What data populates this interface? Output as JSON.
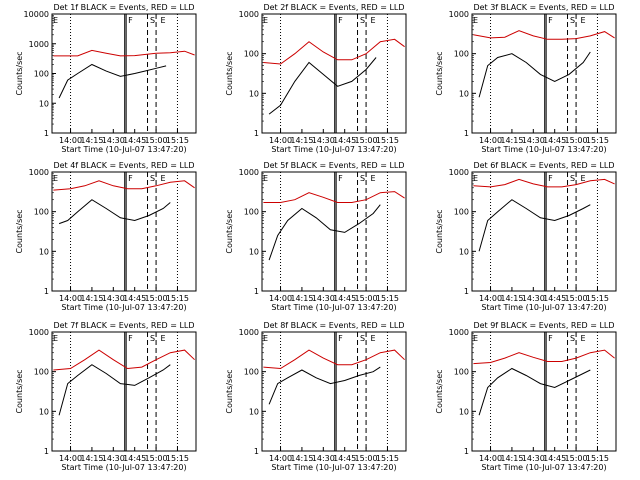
{
  "figure": {
    "xlabel": "Start Time (10-Jul-07 13:47:20)",
    "ylabel": "Counts/sec",
    "ytick_labels": [
      "1",
      "10",
      "100",
      "1000",
      "10000"
    ],
    "xtick_labels": [
      "14:00",
      "14:15",
      "14:30",
      "14:45",
      "15:00",
      "15:15"
    ],
    "marker_labels": [
      "F",
      "S",
      "E"
    ],
    "series_colors": {
      "events": "#000000",
      "lld": "#cc0000"
    }
  },
  "chart_data": [
    {
      "type": "line",
      "title": "Det 1f BLACK = Events, RED = LLD",
      "ylim": [
        1,
        10000
      ],
      "yscale": "log",
      "xticks": [
        "14:00",
        "14:15",
        "14:30",
        "14:45",
        "15:00",
        "15:15"
      ],
      "series": [
        {
          "color": "#cc0000",
          "x": [
            "13:48",
            "14:05",
            "14:15",
            "14:25",
            "14:35",
            "14:45",
            "15:00",
            "15:10",
            "15:20",
            "15:27"
          ],
          "values": [
            390,
            390,
            600,
            480,
            390,
            400,
            480,
            500,
            560,
            420
          ]
        },
        {
          "color": "#000000",
          "x": [
            "13:52",
            "13:58",
            "14:05",
            "14:15",
            "14:25",
            "14:35",
            "14:45",
            "14:52",
            "15:00",
            "15:07"
          ],
          "values": [
            15,
            60,
            100,
            200,
            120,
            80,
            100,
            120,
            150,
            180
          ]
        }
      ]
    },
    {
      "type": "line",
      "title": "Det 2f BLACK = Events, RED = LLD",
      "ylim": [
        1,
        1000
      ],
      "yscale": "log",
      "xticks": [
        "14:00",
        "14:15",
        "14:30",
        "14:45",
        "15:00",
        "15:15"
      ],
      "series": [
        {
          "color": "#cc0000",
          "x": [
            "13:48",
            "14:00",
            "14:10",
            "14:20",
            "14:30",
            "14:40",
            "14:50",
            "15:00",
            "15:10",
            "15:20",
            "15:27"
          ],
          "values": [
            60,
            55,
            100,
            200,
            110,
            70,
            70,
            100,
            200,
            230,
            150
          ]
        },
        {
          "color": "#000000",
          "x": [
            "13:52",
            "14:00",
            "14:10",
            "14:20",
            "14:30",
            "14:40",
            "14:50",
            "15:00",
            "15:07"
          ],
          "values": [
            3,
            5,
            20,
            60,
            30,
            15,
            20,
            40,
            80
          ]
        }
      ]
    },
    {
      "type": "line",
      "title": "Det 3f BLACK = Events, RED = LLD",
      "ylim": [
        1,
        1000
      ],
      "yscale": "log",
      "xticks": [
        "14:00",
        "14:15",
        "14:30",
        "14:45",
        "15:00",
        "15:15"
      ],
      "series": [
        {
          "color": "#cc0000",
          "x": [
            "13:48",
            "14:00",
            "14:10",
            "14:20",
            "14:30",
            "14:40",
            "14:50",
            "15:00",
            "15:10",
            "15:20",
            "15:27"
          ],
          "values": [
            300,
            250,
            260,
            380,
            280,
            230,
            230,
            240,
            280,
            360,
            250
          ]
        },
        {
          "color": "#000000",
          "x": [
            "13:52",
            "13:58",
            "14:05",
            "14:15",
            "14:25",
            "14:35",
            "14:45",
            "14:55",
            "15:05",
            "15:10"
          ],
          "values": [
            8,
            50,
            80,
            100,
            60,
            30,
            20,
            30,
            60,
            110
          ]
        }
      ]
    },
    {
      "type": "line",
      "title": "Det 4f BLACK = Events, RED = LLD",
      "ylim": [
        1,
        1000
      ],
      "yscale": "log",
      "xticks": [
        "14:00",
        "14:15",
        "14:30",
        "14:45",
        "15:00",
        "15:15"
      ],
      "series": [
        {
          "color": "#cc0000",
          "x": [
            "13:48",
            "14:00",
            "14:10",
            "14:20",
            "14:30",
            "14:40",
            "14:50",
            "15:00",
            "15:10",
            "15:20",
            "15:27"
          ],
          "values": [
            350,
            380,
            450,
            600,
            450,
            380,
            380,
            450,
            550,
            600,
            400
          ]
        },
        {
          "color": "#000000",
          "x": [
            "13:52",
            "13:58",
            "14:05",
            "14:15",
            "14:25",
            "14:35",
            "14:45",
            "14:55",
            "15:05",
            "15:10"
          ],
          "values": [
            50,
            60,
            100,
            200,
            120,
            70,
            60,
            80,
            120,
            170
          ]
        }
      ]
    },
    {
      "type": "line",
      "title": "Det 5f BLACK = Events, RED = LLD",
      "ylim": [
        1,
        1000
      ],
      "yscale": "log",
      "xticks": [
        "14:00",
        "14:15",
        "14:30",
        "14:45",
        "15:00",
        "15:15"
      ],
      "series": [
        {
          "color": "#cc0000",
          "x": [
            "13:48",
            "14:00",
            "14:10",
            "14:20",
            "14:30",
            "14:40",
            "14:50",
            "15:00",
            "15:10",
            "15:20",
            "15:27"
          ],
          "values": [
            170,
            170,
            200,
            300,
            230,
            170,
            170,
            200,
            300,
            320,
            220
          ]
        },
        {
          "color": "#000000",
          "x": [
            "13:52",
            "13:58",
            "14:05",
            "14:15",
            "14:25",
            "14:35",
            "14:45",
            "14:55",
            "15:05",
            "15:10"
          ],
          "values": [
            6,
            25,
            60,
            120,
            70,
            35,
            30,
            50,
            90,
            150
          ]
        }
      ]
    },
    {
      "type": "line",
      "title": "Det 6f BLACK = Events, RED = LLD",
      "ylim": [
        1,
        1000
      ],
      "yscale": "log",
      "xticks": [
        "14:00",
        "14:15",
        "14:30",
        "14:45",
        "15:00",
        "15:15"
      ],
      "series": [
        {
          "color": "#cc0000",
          "x": [
            "13:48",
            "14:00",
            "14:10",
            "14:20",
            "14:30",
            "14:40",
            "14:50",
            "15:00",
            "15:10",
            "15:20",
            "15:27"
          ],
          "values": [
            450,
            420,
            480,
            650,
            500,
            420,
            420,
            480,
            600,
            650,
            500
          ]
        },
        {
          "color": "#000000",
          "x": [
            "13:52",
            "13:58",
            "14:05",
            "14:15",
            "14:25",
            "14:35",
            "14:45",
            "14:55",
            "15:05",
            "15:10"
          ],
          "values": [
            10,
            60,
            100,
            200,
            120,
            70,
            60,
            80,
            120,
            150
          ]
        }
      ]
    },
    {
      "type": "line",
      "title": "Det 7f BLACK = Events, RED = LLD",
      "ylim": [
        1,
        1000
      ],
      "yscale": "log",
      "xticks": [
        "14:00",
        "14:15",
        "14:30",
        "14:45",
        "15:00",
        "15:15"
      ],
      "series": [
        {
          "color": "#cc0000",
          "x": [
            "13:48",
            "14:00",
            "14:10",
            "14:20",
            "14:30",
            "14:40",
            "14:50",
            "15:00",
            "15:10",
            "15:20",
            "15:27"
          ],
          "values": [
            110,
            120,
            200,
            350,
            200,
            120,
            130,
            200,
            300,
            350,
            200
          ]
        },
        {
          "color": "#000000",
          "x": [
            "13:52",
            "13:58",
            "14:05",
            "14:15",
            "14:25",
            "14:35",
            "14:45",
            "14:55",
            "15:05",
            "15:10"
          ],
          "values": [
            8,
            50,
            80,
            150,
            90,
            50,
            45,
            70,
            110,
            150
          ]
        }
      ]
    },
    {
      "type": "line",
      "title": "Det 8f BLACK = Events, RED = LLD",
      "ylim": [
        1,
        1000
      ],
      "yscale": "log",
      "xticks": [
        "14:00",
        "14:15",
        "14:30",
        "14:45",
        "15:00",
        "15:15"
      ],
      "series": [
        {
          "color": "#cc0000",
          "x": [
            "13:48",
            "14:00",
            "14:10",
            "14:20",
            "14:30",
            "14:40",
            "14:50",
            "15:00",
            "15:10",
            "15:20",
            "15:27"
          ],
          "values": [
            130,
            120,
            200,
            350,
            220,
            150,
            150,
            200,
            300,
            350,
            200
          ]
        },
        {
          "color": "#000000",
          "x": [
            "13:52",
            "13:58",
            "14:05",
            "14:15",
            "14:25",
            "14:35",
            "14:45",
            "14:55",
            "15:05",
            "15:10"
          ],
          "values": [
            15,
            50,
            70,
            110,
            70,
            50,
            60,
            80,
            100,
            130
          ]
        }
      ]
    },
    {
      "type": "line",
      "title": "Det 9f BLACK = Events, RED = LLD",
      "ylim": [
        1,
        1000
      ],
      "yscale": "log",
      "xticks": [
        "14:00",
        "14:15",
        "14:30",
        "14:45",
        "15:00",
        "15:15"
      ],
      "series": [
        {
          "color": "#cc0000",
          "x": [
            "13:48",
            "14:00",
            "14:10",
            "14:20",
            "14:30",
            "14:40",
            "14:50",
            "15:00",
            "15:10",
            "15:20",
            "15:27"
          ],
          "values": [
            160,
            170,
            220,
            300,
            230,
            180,
            180,
            220,
            300,
            350,
            220
          ]
        },
        {
          "color": "#000000",
          "x": [
            "13:52",
            "13:58",
            "14:05",
            "14:15",
            "14:25",
            "14:35",
            "14:45",
            "14:55",
            "15:05",
            "15:10"
          ],
          "values": [
            8,
            40,
            70,
            120,
            80,
            50,
            40,
            60,
            90,
            110
          ]
        }
      ]
    }
  ]
}
